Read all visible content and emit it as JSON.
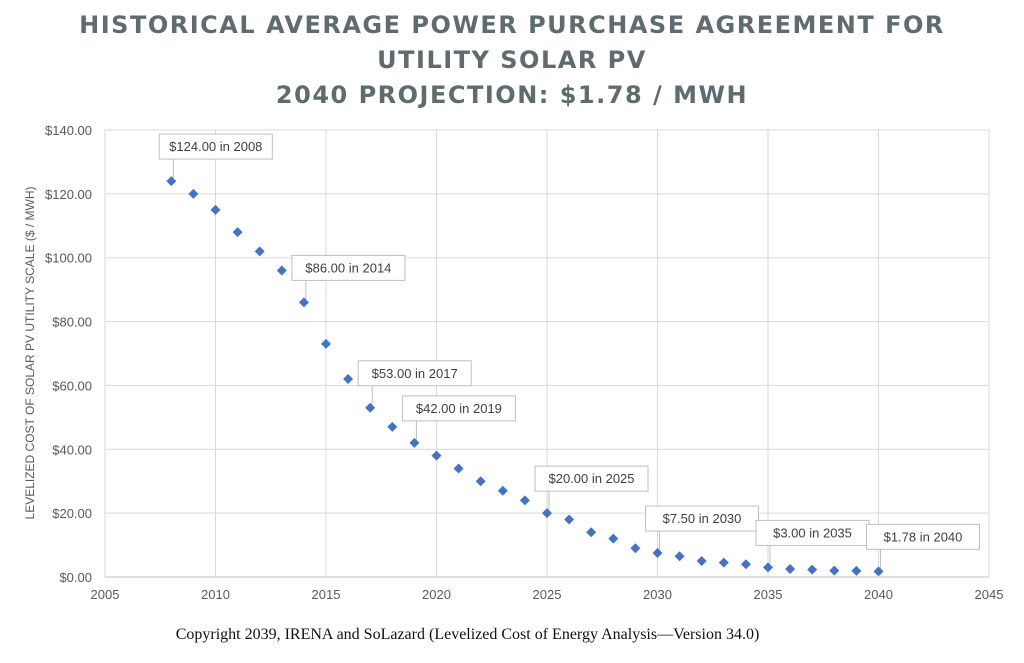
{
  "chart_data": {
    "type": "scatter",
    "title": [
      "HISTORICAL AVERAGE POWER PURCHASE AGREEMENT FOR",
      "UTILITY SOLAR PV",
      "2040 PROJECTION: $1.78 / MWH"
    ],
    "xlabel": "",
    "ylabel": "LEVELIZED COST OF SOLAR PV UTILITY SCALE ($ / MWH)",
    "xlim": [
      2005,
      2045
    ],
    "ylim": [
      0,
      140
    ],
    "grid": true,
    "legend": "none",
    "x_ticks": [
      2005,
      2010,
      2015,
      2020,
      2025,
      2030,
      2035,
      2040,
      2045
    ],
    "x_tick_labels": [
      "2005",
      "2010",
      "2015",
      "2020",
      "2025",
      "2030",
      "2035",
      "2040",
      "2045"
    ],
    "y_ticks": [
      0,
      20,
      40,
      60,
      80,
      100,
      120,
      140
    ],
    "y_tick_labels": [
      "$0.00",
      "$20.00",
      "$40.00",
      "$60.00",
      "$80.00",
      "$100.00",
      "$120.00",
      "$140.00"
    ],
    "marker": "diamond",
    "marker_color": "#4472c4",
    "points": [
      {
        "x": 2008,
        "y": 124
      },
      {
        "x": 2009,
        "y": 120
      },
      {
        "x": 2010,
        "y": 115
      },
      {
        "x": 2011,
        "y": 108
      },
      {
        "x": 2012,
        "y": 102
      },
      {
        "x": 2013,
        "y": 96
      },
      {
        "x": 2014,
        "y": 86
      },
      {
        "x": 2015,
        "y": 73
      },
      {
        "x": 2016,
        "y": 62
      },
      {
        "x": 2017,
        "y": 53
      },
      {
        "x": 2018,
        "y": 47
      },
      {
        "x": 2019,
        "y": 42
      },
      {
        "x": 2020,
        "y": 38
      },
      {
        "x": 2021,
        "y": 34
      },
      {
        "x": 2022,
        "y": 30
      },
      {
        "x": 2023,
        "y": 27
      },
      {
        "x": 2024,
        "y": 24
      },
      {
        "x": 2025,
        "y": 20
      },
      {
        "x": 2026,
        "y": 18
      },
      {
        "x": 2027,
        "y": 14
      },
      {
        "x": 2028,
        "y": 12
      },
      {
        "x": 2029,
        "y": 9
      },
      {
        "x": 2030,
        "y": 7.5
      },
      {
        "x": 2031,
        "y": 6.5
      },
      {
        "x": 2032,
        "y": 5
      },
      {
        "x": 2033,
        "y": 4.5
      },
      {
        "x": 2034,
        "y": 4
      },
      {
        "x": 2035,
        "y": 3
      },
      {
        "x": 2036,
        "y": 2.5
      },
      {
        "x": 2037,
        "y": 2.3
      },
      {
        "x": 2038,
        "y": 2
      },
      {
        "x": 2039,
        "y": 1.9
      },
      {
        "x": 2040,
        "y": 1.78
      }
    ],
    "annotations": [
      {
        "x": 2008,
        "y": 124,
        "text": "$124.00 in 2008"
      },
      {
        "x": 2014,
        "y": 86,
        "text": "$86.00 in 2014"
      },
      {
        "x": 2017,
        "y": 53,
        "text": "$53.00 in 2017"
      },
      {
        "x": 2019,
        "y": 42,
        "text": "$42.00 in 2019"
      },
      {
        "x": 2025,
        "y": 20,
        "text": "$20.00 in 2025"
      },
      {
        "x": 2030,
        "y": 7.5,
        "text": "$7.50 in 2030"
      },
      {
        "x": 2035,
        "y": 3,
        "text": "$3.00 in 2035"
      },
      {
        "x": 2040,
        "y": 1.78,
        "text": "$1.78 in 2040"
      }
    ]
  },
  "footer": {
    "copyright": "Copyright 2039, IRENA and SoLazard (Levelized Cost of Energy Analysis—Version 34.0)"
  }
}
